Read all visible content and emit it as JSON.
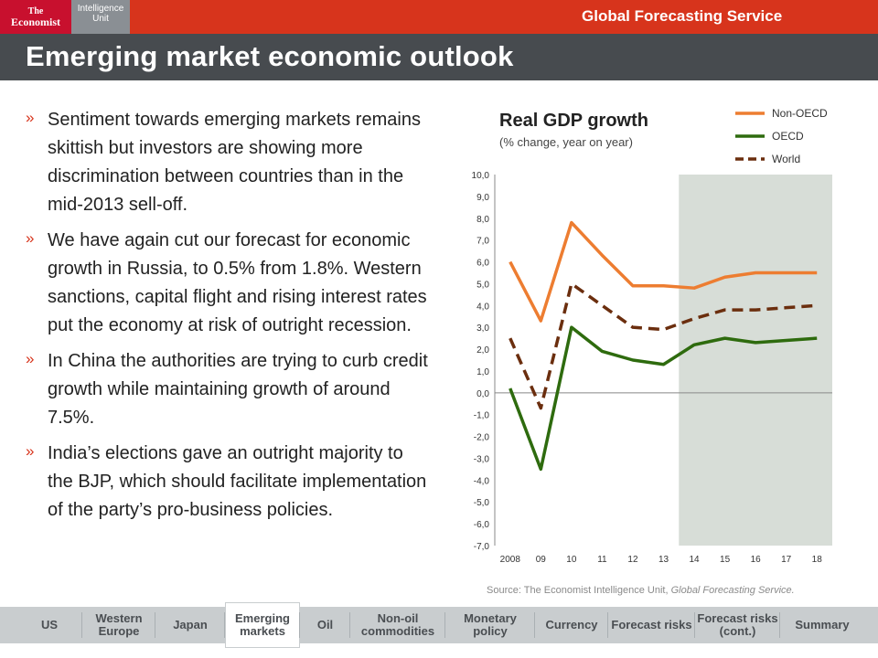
{
  "header": {
    "logo_economist_line1": "The",
    "logo_economist_line2": "Economist",
    "logo_eiu_line1": "Intelligence",
    "logo_eiu_line2": "Unit",
    "service_title": "Global Forecasting Service",
    "page_title": "Emerging market economic outlook"
  },
  "bullets": [
    {
      "mark": "»",
      "text": "Sentiment towards emerging markets remains skittish but investors are showing more discrimination between countries than in the mid-2013 sell-off."
    },
    {
      "mark": "»",
      "text": "We have again cut our forecast for economic growth in Russia, to 0.5% from 1.8%. Western sanctions, capital flight and rising interest rates put the economy at risk of outright recession."
    },
    {
      "mark": "»",
      "text": "In China the authorities are trying to curb credit growth while maintaining growth of around 7.5%."
    },
    {
      "mark": "»",
      "text": "India’s elections gave an outright majority to the BJP, which should facilitate implementation of the party’s pro-business policies."
    }
  ],
  "chart_data": {
    "type": "line",
    "title": "Real GDP growth",
    "subtitle": "(% change, year on year)",
    "categories": [
      "2008",
      "09",
      "10",
      "11",
      "12",
      "13",
      "14",
      "15",
      "16",
      "17",
      "18"
    ],
    "ylim": [
      -7,
      10
    ],
    "yticks": [
      "10,0",
      "9,0",
      "8,0",
      "7,0",
      "6,0",
      "5,0",
      "4,0",
      "3,0",
      "2,0",
      "1,0",
      "0,0",
      "-1,0",
      "-2,0",
      "-3,0",
      "-4,0",
      "-5,0",
      "-6,0",
      "-7,0"
    ],
    "forecast_shade_from_index": 6,
    "legend_position": "top-right",
    "series": [
      {
        "name": "Non-OECD",
        "color": "#ed7d31",
        "dashed": false,
        "values": [
          6.0,
          3.3,
          7.8,
          6.3,
          4.9,
          4.9,
          4.8,
          5.3,
          5.5,
          5.5,
          5.5
        ]
      },
      {
        "name": "OECD",
        "color": "#2e6b0e",
        "dashed": false,
        "values": [
          0.2,
          -3.5,
          3.0,
          1.9,
          1.5,
          1.3,
          2.2,
          2.5,
          2.3,
          2.4,
          2.5
        ]
      },
      {
        "name": "World",
        "color": "#6b2e0e",
        "dashed": true,
        "values": [
          2.5,
          -0.7,
          5.0,
          4.0,
          3.0,
          2.9,
          3.4,
          3.8,
          3.8,
          3.9,
          4.0
        ]
      }
    ]
  },
  "source": {
    "prefix": "Source: The Economist Intelligence Unit,",
    "publication": "Global Forecasting Service."
  },
  "nav": [
    {
      "label": "US"
    },
    {
      "label": "Western Europe"
    },
    {
      "label": "Japan"
    },
    {
      "label": "Emerging markets",
      "active": true
    },
    {
      "label": "Oil"
    },
    {
      "label": "Non-oil commodities"
    },
    {
      "label": "Monetary policy"
    },
    {
      "label": "Currency"
    },
    {
      "label": "Forecast risks"
    },
    {
      "label": "Forecast risks (cont.)"
    },
    {
      "label": "Summary"
    }
  ]
}
